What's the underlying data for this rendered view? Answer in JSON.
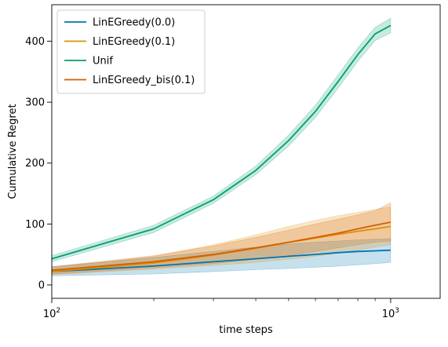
{
  "chart_data": {
    "type": "line",
    "title": "",
    "xlabel": "time steps",
    "ylabel": "Cumulative Regret",
    "x_scale": "log",
    "xlim": [
      100,
      1400
    ],
    "ylim": [
      -22,
      460
    ],
    "x_ticks": [
      {
        "value": 100,
        "base": "10",
        "exp": "2"
      },
      {
        "value": 1000,
        "base": "10",
        "exp": "3"
      }
    ],
    "y_ticks": [
      0,
      100,
      200,
      300,
      400
    ],
    "grid": false,
    "legend_position": "top-left",
    "x": [
      100,
      200,
      300,
      400,
      500,
      600,
      700,
      800,
      900,
      1000
    ],
    "series": [
      {
        "name": "LinEGreedy(0.0)",
        "color": "#0173b2",
        "values": [
          22,
          31,
          38,
          43,
          47,
          50,
          53,
          55,
          56,
          57
        ],
        "lower": [
          15,
          18,
          22,
          25,
          27,
          29,
          31,
          33,
          35,
          37
        ],
        "upper": [
          30,
          45,
          55,
          62,
          67,
          70,
          72,
          74,
          75,
          76
        ]
      },
      {
        "name": "LinEGreedy(0.1)",
        "color": "#de8f05",
        "values": [
          22,
          36,
          49,
          60,
          70,
          77,
          83,
          88,
          92,
          96
        ],
        "lower": [
          17,
          26,
          32,
          37,
          42,
          47,
          52,
          57,
          62,
          66
        ],
        "upper": [
          28,
          47,
          66,
          82,
          96,
          106,
          114,
          119,
          124,
          128
        ]
      },
      {
        "name": "Unif",
        "color": "#029e73",
        "values": [
          43,
          92,
          140,
          188,
          237,
          285,
          334,
          378,
          412,
          426
        ],
        "lower": [
          38,
          86,
          134,
          181,
          228,
          275,
          323,
          367,
          401,
          414
        ],
        "upper": [
          48,
          98,
          146,
          195,
          246,
          295,
          345,
          389,
          423,
          438
        ]
      },
      {
        "name": "LinEGreedy_bis(0.1)",
        "color": "#d55e00",
        "values": [
          24,
          38,
          50,
          61,
          70,
          78,
          85,
          92,
          98,
          103
        ],
        "lower": [
          18,
          28,
          35,
          42,
          48,
          55,
          61,
          66,
          70,
          72
        ],
        "upper": [
          30,
          48,
          64,
          78,
          90,
          100,
          108,
          115,
          122,
          135
        ]
      }
    ]
  }
}
